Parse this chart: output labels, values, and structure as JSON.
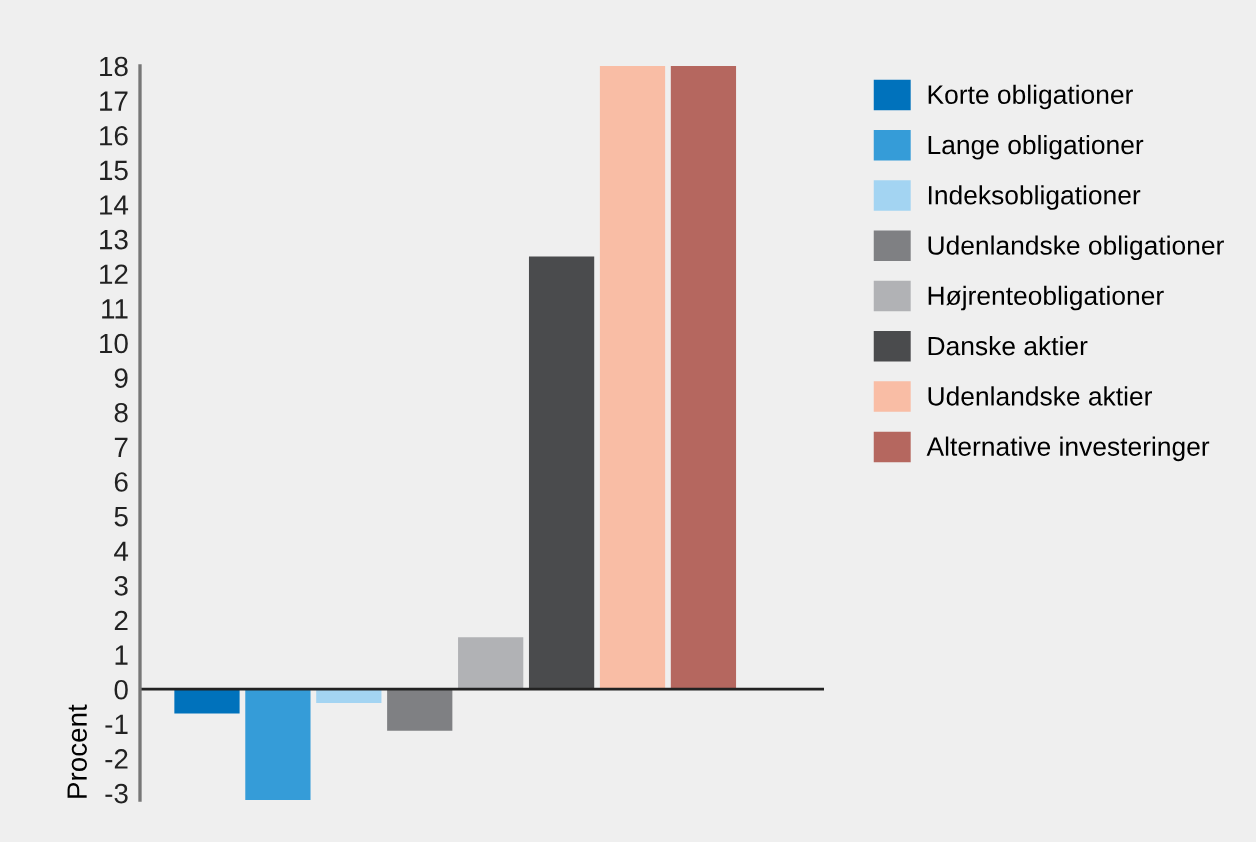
{
  "chart_data": {
    "type": "bar",
    "ylabel": "Procent",
    "categories": [
      null
    ],
    "series": [
      {
        "name": "Korte obligationer",
        "color": "#0072bc",
        "values": [
          -0.7
        ]
      },
      {
        "name": "Lange obligationer",
        "color": "#359cd8",
        "values": [
          -3.2
        ]
      },
      {
        "name": "Indeksobligationer",
        "color": "#a3d4f2",
        "values": [
          -0.4
        ]
      },
      {
        "name": "Udenlandske obligationer",
        "color": "#7f8083",
        "values": [
          -1.2
        ]
      },
      {
        "name": "Højrenteobligationer",
        "color": "#b1b2b5",
        "values": [
          1.5
        ]
      },
      {
        "name": "Danske aktier",
        "color": "#4a4b4d",
        "values": [
          12.5
        ]
      },
      {
        "name": "Udenlandske aktier",
        "color": "#f9bda5",
        "values": [
          18
        ]
      },
      {
        "name": "Alternative investeringer",
        "color": "#b5675f",
        "values": [
          18
        ]
      }
    ],
    "ylim": [
      -3.2,
      18
    ],
    "yticks": [
      -3,
      -2,
      -1,
      0,
      1,
      2,
      3,
      4,
      5,
      6,
      7,
      8,
      9,
      10,
      11,
      12,
      13,
      14,
      15,
      16,
      17,
      18
    ],
    "legend": "right"
  }
}
